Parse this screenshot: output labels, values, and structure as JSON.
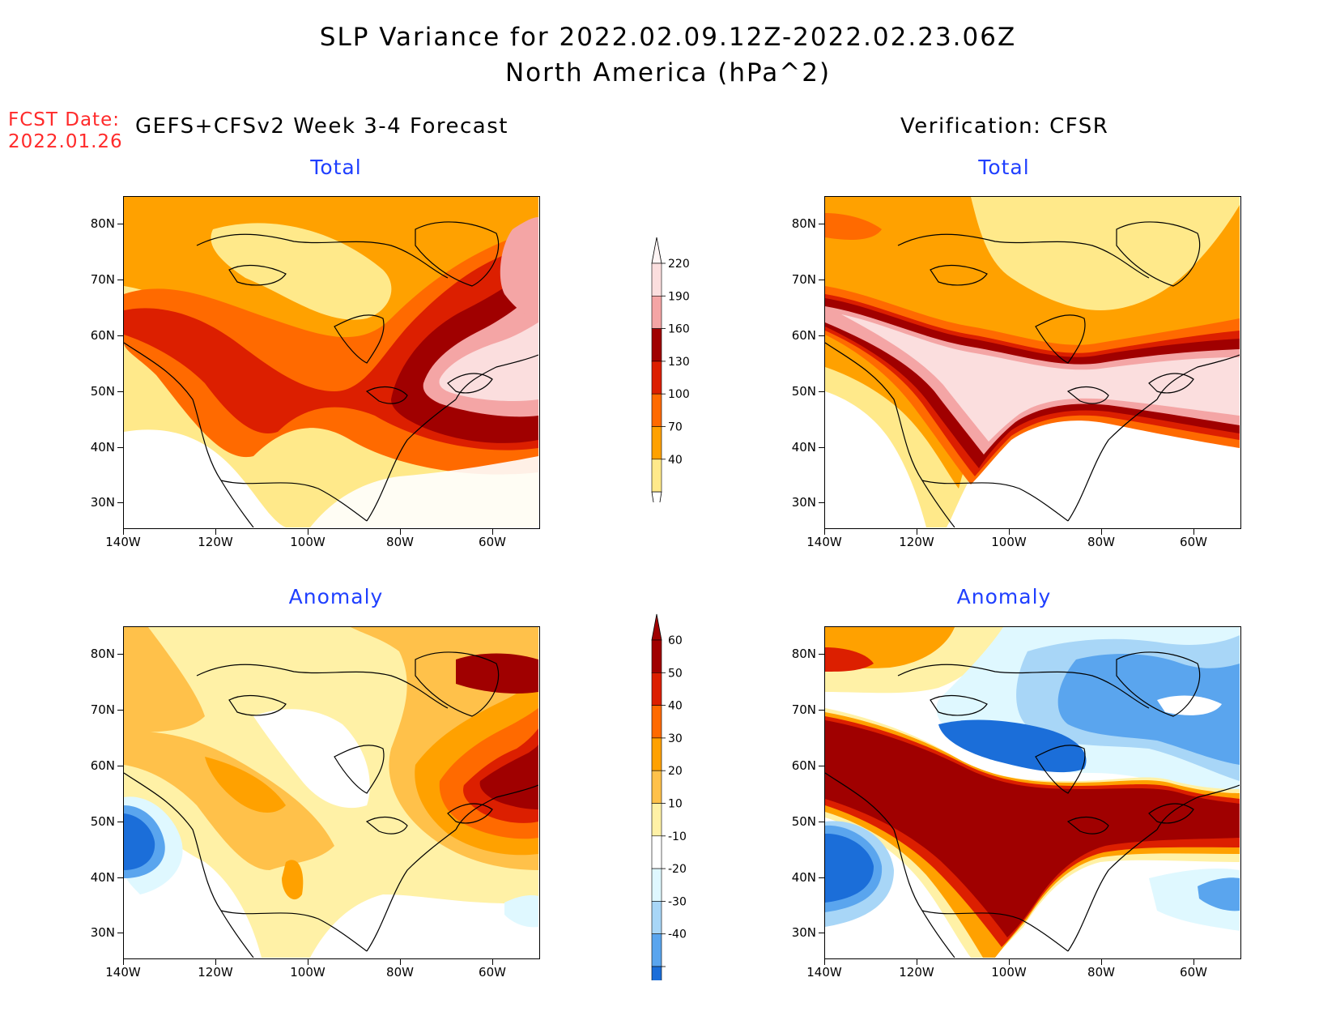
{
  "title": {
    "line1": "SLP Variance for 2022.02.09.12Z-2022.02.23.06Z",
    "line2": "North America (hPa^2)"
  },
  "fcst_date": {
    "label": "FCST Date:",
    "value": "2022.01.26"
  },
  "headers": {
    "forecast": "GEFS+CFSv2 Week 3-4 Forecast",
    "verification": "Verification: CFSR"
  },
  "panels": {
    "fc_total": {
      "title": "Total"
    },
    "vf_total": {
      "title": "Total"
    },
    "fc_anom": {
      "title": "Anomaly"
    },
    "vf_anom": {
      "title": "Anomaly"
    }
  },
  "axes": {
    "lat_labels": [
      "80N",
      "70N",
      "60N",
      "50N",
      "40N",
      "30N"
    ],
    "lon_labels": [
      "140W",
      "120W",
      "100W",
      "80W",
      "60W"
    ]
  },
  "colorbars": {
    "total": {
      "levels": [
        "220",
        "190",
        "160",
        "130",
        "100",
        "70",
        "40"
      ],
      "colors": [
        "#fbdede",
        "#f4a5a5",
        "#a00000",
        "#dc1f00",
        "#ff6a00",
        "#ffa100",
        "#ffe98a"
      ]
    },
    "anomaly": {
      "levels": [
        "60",
        "50",
        "40",
        "30",
        "20",
        "10",
        "-10",
        "-20",
        "-30",
        "-40"
      ],
      "colors": [
        "#a00000",
        "#dc1f00",
        "#ff6a00",
        "#ffa100",
        "#ffc14a",
        "#fff1a6",
        "#ffffff",
        "#dff8ff",
        "#a8d6f7",
        "#5aa5ee",
        "#1b6ed9"
      ]
    }
  }
}
